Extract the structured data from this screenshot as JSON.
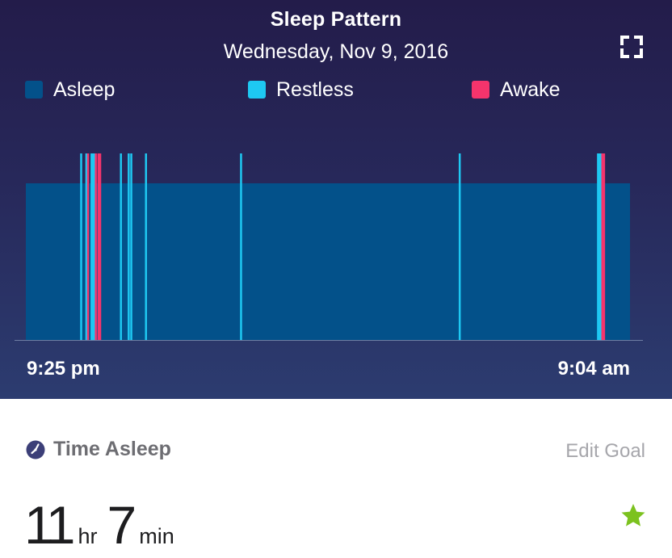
{
  "header": {
    "title": "Sleep Pattern",
    "date": "Wednesday, Nov 9, 2016"
  },
  "legend": [
    {
      "label": "Asleep",
      "color": "#03518a"
    },
    {
      "label": "Restless",
      "color": "#1ec8f2"
    },
    {
      "label": "Awake",
      "color": "#f5346c"
    }
  ],
  "chart_data": {
    "type": "bar",
    "title": "Sleep Pattern",
    "subtitle": "Wednesday, Nov 9, 2016",
    "x_start_label": "9:25 pm",
    "x_end_label": "9:04 am",
    "x_range_minutes": [
      0,
      699
    ],
    "levels": [
      "Asleep",
      "Restless",
      "Awake"
    ],
    "base_state": "Asleep",
    "base_span_minutes": [
      0,
      699
    ],
    "series": [
      {
        "name": "Restless",
        "color": "#1ec8f2",
        "x_minutes": [
          64,
          70,
          76,
          78,
          79,
          110,
          119,
          122,
          139,
          249,
          502,
          662,
          663,
          665,
          668
        ]
      },
      {
        "name": "Awake",
        "color": "#f5346c",
        "x_minutes": [
          72,
          81,
          84,
          86,
          667,
          669
        ]
      }
    ],
    "grid": false
  },
  "stats": {
    "label": "Time Asleep",
    "edit_goal": "Edit Goal",
    "hours": "11",
    "hours_unit": "hr",
    "minutes": "7",
    "minutes_unit": "min",
    "star_color": "#7cc21f"
  },
  "icons": {
    "expand": "expand-icon",
    "clock": "clock-icon",
    "star": "star-icon"
  }
}
